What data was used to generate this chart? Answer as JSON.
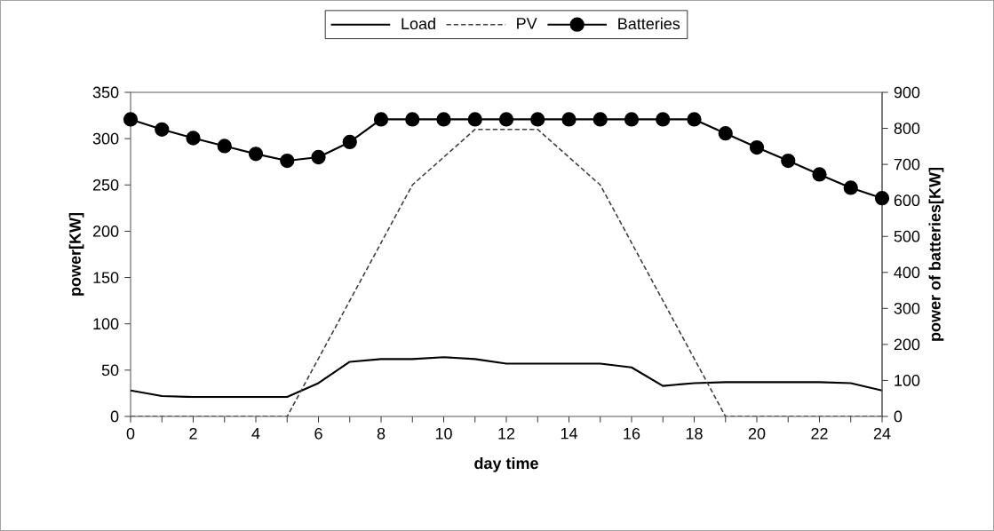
{
  "chart_data": {
    "type": "line",
    "xlabel": "day time",
    "ylabel": "power[KW]",
    "y2label": "power of batteries[KW]",
    "x": [
      0,
      1,
      2,
      3,
      4,
      5,
      6,
      7,
      8,
      9,
      10,
      11,
      12,
      13,
      14,
      15,
      16,
      17,
      18,
      19,
      20,
      21,
      22,
      23,
      24
    ],
    "xlim": [
      0,
      24
    ],
    "xticks": [
      0,
      {
        "value": 1,
        "label": null
      },
      2,
      {
        "value": 3,
        "label": null
      },
      4,
      {
        "value": 5,
        "label": null
      },
      6,
      {
        "value": 7,
        "label": null
      },
      8,
      {
        "value": 9,
        "label": null
      },
      10,
      {
        "value": 11,
        "label": null
      },
      12,
      {
        "value": 13,
        "label": null
      },
      14,
      {
        "value": 15,
        "label": null
      },
      16,
      {
        "value": 17,
        "label": null
      },
      18,
      {
        "value": 19,
        "label": null
      },
      20,
      {
        "value": 21,
        "label": null
      },
      22,
      {
        "value": 23,
        "label": null
      },
      24
    ],
    "ylim": [
      0,
      350
    ],
    "yticks": [
      0,
      50,
      100,
      150,
      200,
      250,
      300,
      350
    ],
    "y2lim": [
      0,
      900
    ],
    "y2ticks": [
      0,
      100,
      200,
      300,
      400,
      500,
      600,
      700,
      800,
      900
    ],
    "legend": "top",
    "series": [
      {
        "name": "Load",
        "color": "#000000",
        "line_style": "solid",
        "marker": "none",
        "values": [
          28,
          22,
          21,
          21,
          21,
          21,
          36,
          59,
          62,
          62,
          64,
          62,
          57,
          57,
          57,
          57,
          53,
          33,
          36,
          37,
          37,
          37,
          37,
          36,
          28
        ]
      },
      {
        "name": "PV",
        "color": "#404040",
        "line_style": "dashed",
        "marker": "none",
        "x": [
          0,
          5,
          9,
          11,
          13,
          15,
          19,
          24
        ],
        "values": [
          0,
          0,
          250,
          310,
          310,
          250,
          0,
          0
        ]
      },
      {
        "name": "Batteries",
        "color": "#000000",
        "line_style": "solid",
        "marker": "circle",
        "axis": "y2",
        "values": [
          825,
          797,
          773,
          751,
          729,
          710,
          720,
          762,
          825,
          825,
          825,
          825,
          825,
          825,
          825,
          825,
          825,
          825,
          825,
          786,
          747,
          710,
          672,
          635,
          606
        ]
      }
    ]
  }
}
